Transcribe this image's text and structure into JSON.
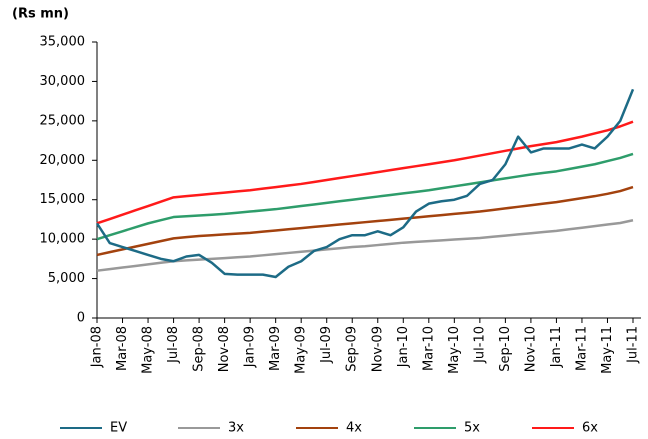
{
  "chart_data": {
    "type": "line",
    "y_label": "(Rs mn)",
    "categories": [
      "Jan-08",
      null,
      "Mar-08",
      null,
      "May-08",
      null,
      "Jul-08",
      null,
      "Sep-08",
      null,
      "Nov-08",
      null,
      "Jan-09",
      null,
      "Mar-09",
      null,
      "May-09",
      null,
      "Jul-09",
      null,
      "Sep-09",
      null,
      "Nov-09",
      null,
      "Jan-10",
      null,
      "Mar-10",
      null,
      "May-10",
      null,
      "Jul-10",
      null,
      "Sep-10",
      null,
      "Nov-10",
      null,
      "Jan-11",
      null,
      "Mar-11",
      null,
      "May-11",
      null,
      "Jul-11"
    ],
    "series": [
      {
        "name": "EV",
        "color": "#1d6b86",
        "values": [
          12000,
          9500,
          9000,
          8500,
          8000,
          7500,
          7200,
          7800,
          8000,
          7000,
          5600,
          5500,
          5500,
          5500,
          5200,
          6500,
          7200,
          8500,
          9000,
          10000,
          10500,
          10500,
          11000,
          10500,
          11500,
          13500,
          14500,
          14800,
          15000,
          15500,
          17000,
          17500,
          19500,
          23000,
          21000,
          21500,
          21500,
          21500,
          22000,
          21500,
          23000,
          25000,
          29000
        ]
      },
      {
        "name": "3x",
        "color": "#999999",
        "values": [
          6000,
          6200,
          6400,
          6600,
          6800,
          7000,
          7200,
          7300,
          7400,
          7500,
          7600,
          7700,
          7800,
          7950,
          8100,
          8250,
          8400,
          8550,
          8700,
          8850,
          9000,
          9100,
          9250,
          9400,
          9550,
          9650,
          9750,
          9850,
          9950,
          10050,
          10150,
          10300,
          10450,
          10600,
          10750,
          10900,
          11050,
          11250,
          11450,
          11650,
          11850,
          12050,
          12400
        ]
      },
      {
        "name": "4x",
        "color": "#a3420e",
        "values": [
          8000,
          8350,
          8700,
          9050,
          9400,
          9750,
          10100,
          10250,
          10400,
          10500,
          10600,
          10700,
          10800,
          10950,
          11100,
          11250,
          11400,
          11550,
          11700,
          11850,
          12000,
          12150,
          12300,
          12450,
          12600,
          12750,
          12900,
          13050,
          13200,
          13350,
          13500,
          13700,
          13900,
          14100,
          14300,
          14500,
          14700,
          14950,
          15200,
          15450,
          15750,
          16100,
          16600
        ]
      },
      {
        "name": "5x",
        "color": "#2e9d6b",
        "values": [
          10000,
          10500,
          11000,
          11500,
          12000,
          12400,
          12800,
          12900,
          13000,
          13100,
          13200,
          13350,
          13500,
          13650,
          13800,
          14000,
          14200,
          14400,
          14600,
          14800,
          15000,
          15200,
          15400,
          15600,
          15800,
          16000,
          16200,
          16450,
          16700,
          16950,
          17200,
          17450,
          17700,
          17950,
          18200,
          18400,
          18600,
          18900,
          19200,
          19500,
          19900,
          20300,
          20800
        ]
      },
      {
        "name": "6x",
        "color": "#ff1a1a",
        "values": [
          12000,
          12550,
          13100,
          13650,
          14200,
          14750,
          15300,
          15450,
          15600,
          15750,
          15900,
          16050,
          16200,
          16400,
          16600,
          16800,
          17000,
          17250,
          17500,
          17750,
          18000,
          18250,
          18500,
          18750,
          19000,
          19250,
          19500,
          19750,
          20000,
          20300,
          20600,
          20900,
          21200,
          21500,
          21800,
          22050,
          22300,
          22650,
          23000,
          23400,
          23800,
          24300,
          24900
        ]
      }
    ],
    "ylim": [
      0,
      35000
    ],
    "yticks": [
      0,
      {
        "value": 5000,
        "label": "5,000"
      },
      {
        "value": 10000,
        "label": "10,000"
      },
      {
        "value": 15000,
        "label": "15,000"
      },
      {
        "value": 20000,
        "label": "20,000"
      },
      {
        "value": 25000,
        "label": "25,000"
      },
      {
        "value": 30000,
        "label": "30,000"
      },
      {
        "value": 35000,
        "label": "35,000"
      }
    ],
    "legend": "bottom"
  }
}
